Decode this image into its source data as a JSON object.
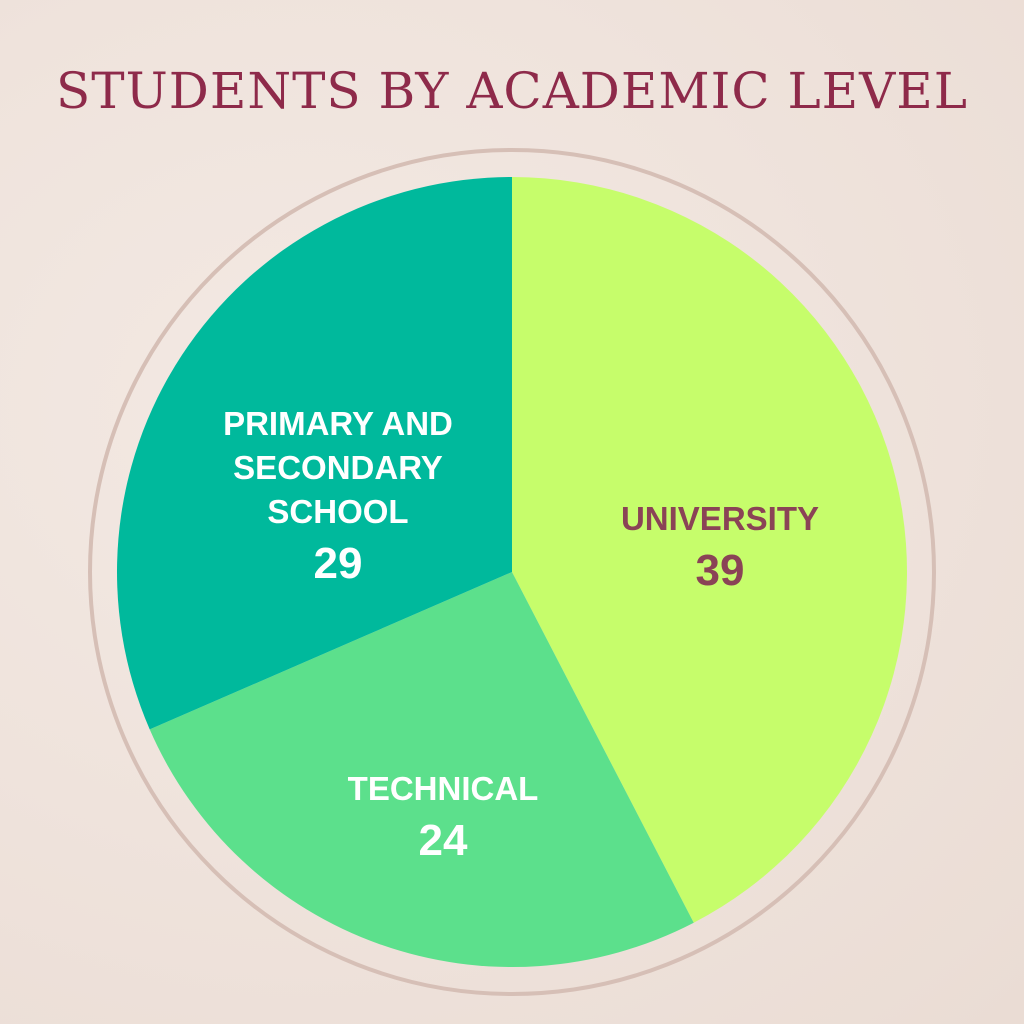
{
  "chart_data": {
    "type": "pie",
    "title": "STUDENTS BY ACADEMIC LEVEL",
    "slices": [
      {
        "label": "UNIVERSITY",
        "value": 39,
        "color": "#c6fd6b",
        "text_color": "#8a4356"
      },
      {
        "label": "TECHNICAL",
        "value": 24,
        "color": "#5ce08c",
        "text_color": "#ffffff"
      },
      {
        "label": "PRIMARY AND SECONDARY SCHOOL",
        "value": 29,
        "color": "#00b99c",
        "text_color": "#ffffff"
      }
    ],
    "start_angle": "12 o'clock",
    "direction": "clockwise",
    "ring_color": "#d6bfb6",
    "title_color": "#8e2a4a"
  }
}
